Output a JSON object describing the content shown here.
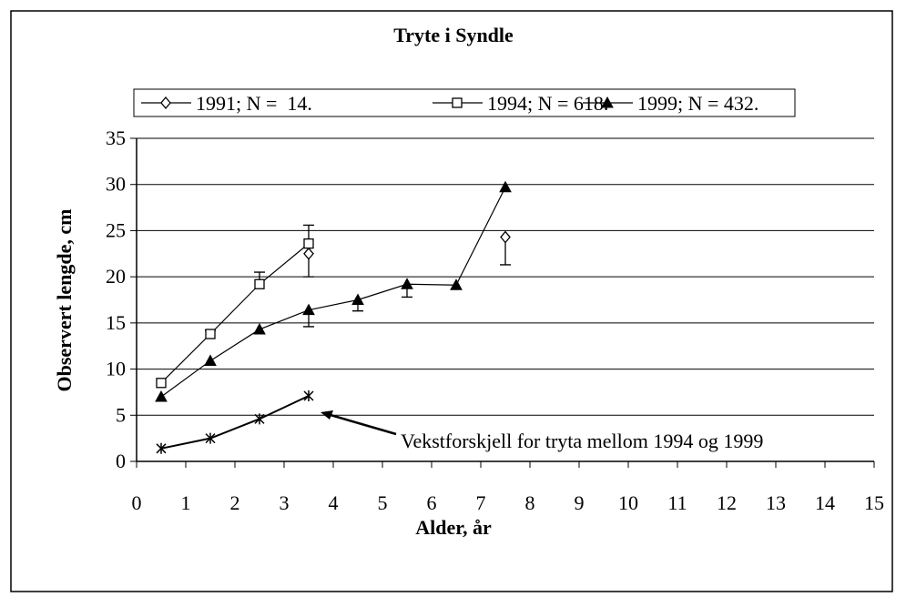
{
  "chart_data": {
    "type": "line",
    "title": "Tryte i Syndle",
    "x_label": "Alder, år",
    "y_label": "Observert lengde, cm",
    "annotation": "Vekstforskjell for tryta mellom 1994 og 1999",
    "xlim": [
      0,
      15
    ],
    "xticks": [
      0,
      1,
      2,
      3,
      4,
      5,
      6,
      7,
      8,
      9,
      10,
      11,
      12,
      13,
      14,
      15
    ],
    "ylim": [
      0,
      35
    ],
    "yticks": [
      0,
      5,
      10,
      15,
      20,
      25,
      30,
      35
    ],
    "grid": true,
    "legend": "top",
    "series": [
      {
        "name": "1991; N =  14.",
        "color": "#000000",
        "marker": "diamond",
        "error_side": "lower",
        "x": [
          3.5,
          4.5,
          5.5,
          6.5,
          7.5
        ],
        "values": [
          22.5,
          null,
          null,
          null,
          24.3
        ],
        "errors": [
          2.5,
          null,
          null,
          null,
          3.0
        ]
      },
      {
        "name": "1994; N = 618.",
        "color": "#000000",
        "marker": "square",
        "error_side": "upper",
        "x": [
          0.5,
          1.5,
          2.5,
          3.5
        ],
        "values": [
          8.5,
          13.8,
          19.2,
          23.6
        ],
        "errors": [
          null,
          0.4,
          1.3,
          2.0
        ]
      },
      {
        "name": "1999; N = 432.",
        "color": "#000000",
        "marker": "triangle",
        "error_side": "lower",
        "x": [
          0.5,
          1.5,
          2.5,
          3.5,
          4.5,
          5.5,
          6.5,
          7.5
        ],
        "values": [
          7.0,
          10.9,
          14.3,
          16.4,
          17.5,
          19.2,
          19.1,
          29.7
        ],
        "errors": [
          null,
          null,
          null,
          1.8,
          1.2,
          1.4,
          null,
          null
        ]
      },
      {
        "color": "#000000",
        "marker": "star",
        "x": [
          0.5,
          1.5,
          2.5,
          3.5
        ],
        "values": [
          1.4,
          2.5,
          4.6,
          7.1
        ]
      }
    ]
  }
}
